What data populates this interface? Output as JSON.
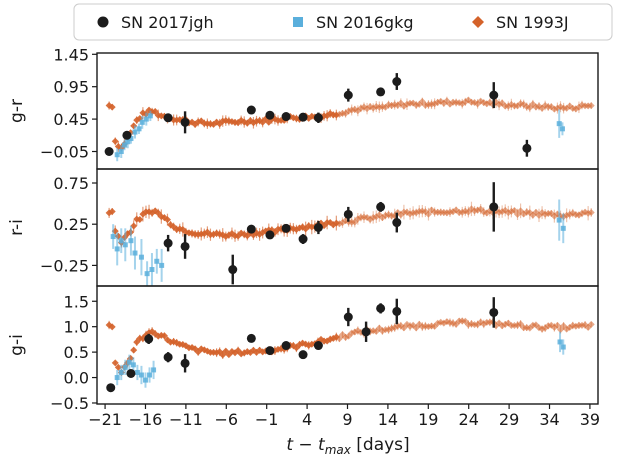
{
  "chart_data": {
    "type": "scatter",
    "xlabel_main": "t − t",
    "xlabel_sub": "max",
    "xlabel_unit": " [days]",
    "xlim": [
      -22,
      40
    ],
    "xticks": [
      -21,
      -16,
      -11,
      -6,
      -1,
      4,
      9,
      14,
      19,
      24,
      29,
      34,
      39
    ],
    "legend": {
      "placement": "top",
      "entries": [
        {
          "name": "SN 2017jgh",
          "color": "#1c1c1c",
          "marker": "circle"
        },
        {
          "name": "SN 2016gkg",
          "color": "#5aafdc",
          "marker": "square"
        },
        {
          "name": "SN 1993J",
          "color": "#d4622a",
          "marker": "diamond"
        }
      ]
    },
    "panels": [
      {
        "ylabel": "g-r",
        "ylim": [
          -0.32,
          1.47
        ],
        "yticks": [
          1.45,
          0.95,
          0.45,
          -0.05
        ],
        "ytick_labels": [
          "1.45",
          "0.95",
          "0.45",
          "−0.05"
        ],
        "sn1993j_curve": [
          [
            -20,
            0.15
          ],
          [
            -19,
            0.0
          ],
          [
            -18,
            0.2
          ],
          [
            -17,
            0.45
          ],
          [
            -16,
            0.55
          ],
          [
            -15,
            0.57
          ],
          [
            -14,
            0.5
          ],
          [
            -12,
            0.45
          ],
          [
            -10,
            0.4
          ],
          [
            -8,
            0.38
          ],
          [
            -6,
            0.4
          ],
          [
            -4,
            0.42
          ],
          [
            -2,
            0.42
          ],
          [
            0,
            0.44
          ],
          [
            2,
            0.47
          ],
          [
            4,
            0.48
          ],
          [
            6,
            0.5
          ],
          [
            8,
            0.55
          ],
          [
            10,
            0.6
          ],
          [
            12,
            0.62
          ],
          [
            14,
            0.64
          ],
          [
            16,
            0.68
          ],
          [
            20,
            0.7
          ],
          [
            24,
            0.72
          ],
          [
            28,
            0.68
          ],
          [
            32,
            0.65
          ],
          [
            36,
            0.62
          ],
          [
            39,
            0.66
          ]
        ],
        "sn2016gkg": [
          {
            "x": -19.5,
            "y": -0.1,
            "err": 0.1
          },
          {
            "x": -19.0,
            "y": -0.05,
            "err": 0.1
          },
          {
            "x": -18.6,
            "y": 0.05,
            "err": 0.08
          },
          {
            "x": -18.2,
            "y": 0.1,
            "err": 0.1
          },
          {
            "x": -17.8,
            "y": 0.15,
            "err": 0.08
          },
          {
            "x": -17.3,
            "y": 0.25,
            "err": 0.1
          },
          {
            "x": -16.8,
            "y": 0.3,
            "err": 0.08
          },
          {
            "x": -16.4,
            "y": 0.4,
            "err": 0.1
          },
          {
            "x": -15.9,
            "y": 0.45,
            "err": 0.1
          },
          {
            "x": -15.4,
            "y": 0.5,
            "err": 0.08
          },
          {
            "x": 35.2,
            "y": 0.38,
            "err": 0.22
          },
          {
            "x": 35.6,
            "y": 0.3,
            "err": 0.1
          }
        ],
        "sn2017jgh": [
          {
            "x": -20.5,
            "y": -0.05,
            "err": 0.04
          },
          {
            "x": -18.3,
            "y": 0.2,
            "err": 0.05
          },
          {
            "x": -13.2,
            "y": 0.47,
            "err": 0.05
          },
          {
            "x": -11.1,
            "y": 0.4,
            "err": 0.17
          },
          {
            "x": -2.9,
            "y": 0.59,
            "err": 0.06
          },
          {
            "x": -0.6,
            "y": 0.51,
            "err": 0.05
          },
          {
            "x": 1.4,
            "y": 0.49,
            "err": 0.05
          },
          {
            "x": 3.5,
            "y": 0.48,
            "err": 0.05
          },
          {
            "x": 5.4,
            "y": 0.47,
            "err": 0.08
          },
          {
            "x": 9.1,
            "y": 0.82,
            "err": 0.1
          },
          {
            "x": 13.1,
            "y": 0.87,
            "err": 0.06
          },
          {
            "x": 15.1,
            "y": 1.03,
            "err": 0.13
          },
          {
            "x": 27.1,
            "y": 0.82,
            "err": 0.2
          },
          {
            "x": 31.2,
            "y": 0.0,
            "err": 0.13
          }
        ]
      },
      {
        "ylabel": "r-i",
        "ylim": [
          -0.5,
          0.92
        ],
        "yticks": [
          0.75,
          0.25,
          -0.25
        ],
        "ytick_labels": [
          "0.75",
          "0.25",
          "−0.25"
        ],
        "sn1993j_curve": [
          [
            -20,
            0.2
          ],
          [
            -19,
            0.05
          ],
          [
            -18,
            0.15
          ],
          [
            -17,
            0.3
          ],
          [
            -16,
            0.38
          ],
          [
            -15,
            0.42
          ],
          [
            -14,
            0.35
          ],
          [
            -12,
            0.2
          ],
          [
            -10,
            0.15
          ],
          [
            -8,
            0.13
          ],
          [
            -6,
            0.12
          ],
          [
            -4,
            0.13
          ],
          [
            -2,
            0.15
          ],
          [
            0,
            0.16
          ],
          [
            2,
            0.2
          ],
          [
            4,
            0.22
          ],
          [
            6,
            0.25
          ],
          [
            8,
            0.28
          ],
          [
            10,
            0.3
          ],
          [
            12,
            0.33
          ],
          [
            14,
            0.35
          ],
          [
            16,
            0.38
          ],
          [
            20,
            0.4
          ],
          [
            24,
            0.42
          ],
          [
            28,
            0.4
          ],
          [
            32,
            0.38
          ],
          [
            36,
            0.36
          ],
          [
            39,
            0.4
          ]
        ],
        "sn2016gkg": [
          {
            "x": -20.0,
            "y": 0.1,
            "err": 0.15
          },
          {
            "x": -19.5,
            "y": -0.05,
            "err": 0.2
          },
          {
            "x": -19.0,
            "y": 0.05,
            "err": 0.15
          },
          {
            "x": -18.5,
            "y": 0.0,
            "err": 0.2
          },
          {
            "x": -17.8,
            "y": 0.05,
            "err": 0.18
          },
          {
            "x": -17.3,
            "y": -0.1,
            "err": 0.2
          },
          {
            "x": -16.5,
            "y": -0.15,
            "err": 0.22
          },
          {
            "x": -15.8,
            "y": -0.35,
            "err": 0.15
          },
          {
            "x": -15.2,
            "y": -0.3,
            "err": 0.2
          },
          {
            "x": -14.6,
            "y": -0.2,
            "err": 0.15
          },
          {
            "x": -14.0,
            "y": -0.25,
            "err": 0.2
          },
          {
            "x": 35.2,
            "y": 0.3,
            "err": 0.25
          },
          {
            "x": 35.7,
            "y": 0.2,
            "err": 0.18
          }
        ],
        "sn2017jgh": [
          {
            "x": -13.2,
            "y": 0.02,
            "err": 0.1
          },
          {
            "x": -11.1,
            "y": -0.02,
            "err": 0.15
          },
          {
            "x": -5.2,
            "y": -0.3,
            "err": 0.18
          },
          {
            "x": -2.9,
            "y": 0.19,
            "err": 0.05
          },
          {
            "x": -0.6,
            "y": 0.12,
            "err": 0.05
          },
          {
            "x": 1.4,
            "y": 0.2,
            "err": 0.05
          },
          {
            "x": 3.5,
            "y": 0.07,
            "err": 0.06
          },
          {
            "x": 5.4,
            "y": 0.21,
            "err": 0.08
          },
          {
            "x": 9.1,
            "y": 0.37,
            "err": 0.09
          },
          {
            "x": 13.1,
            "y": 0.46,
            "err": 0.06
          },
          {
            "x": 15.1,
            "y": 0.27,
            "err": 0.12
          },
          {
            "x": 27.1,
            "y": 0.46,
            "err": 0.3
          }
        ]
      },
      {
        "ylabel": "g-i",
        "ylim": [
          -0.52,
          1.8
        ],
        "yticks": [
          1.5,
          1.0,
          0.5,
          0.0,
          -0.5
        ],
        "ytick_labels": [
          "1.5",
          "1.0",
          "0.5",
          "0.0",
          "−0.5"
        ],
        "sn1993j_curve": [
          [
            -20,
            0.3
          ],
          [
            -19,
            0.1
          ],
          [
            -18,
            0.35
          ],
          [
            -17,
            0.7
          ],
          [
            -16,
            0.85
          ],
          [
            -15,
            0.9
          ],
          [
            -14,
            0.82
          ],
          [
            -12,
            0.65
          ],
          [
            -10,
            0.55
          ],
          [
            -8,
            0.5
          ],
          [
            -6,
            0.48
          ],
          [
            -4,
            0.5
          ],
          [
            -2,
            0.52
          ],
          [
            0,
            0.55
          ],
          [
            2,
            0.6
          ],
          [
            4,
            0.66
          ],
          [
            6,
            0.72
          ],
          [
            8,
            0.8
          ],
          [
            10,
            0.88
          ],
          [
            12,
            0.92
          ],
          [
            14,
            0.96
          ],
          [
            16,
            1.0
          ],
          [
            20,
            1.05
          ],
          [
            24,
            1.08
          ],
          [
            28,
            1.05
          ],
          [
            32,
            1.0
          ],
          [
            36,
            0.98
          ],
          [
            39,
            1.02
          ]
        ],
        "sn2016gkg": [
          {
            "x": -19.5,
            "y": 0.0,
            "err": 0.15
          },
          {
            "x": -19.0,
            "y": 0.1,
            "err": 0.15
          },
          {
            "x": -18.5,
            "y": 0.2,
            "err": 0.15
          },
          {
            "x": -18.0,
            "y": 0.3,
            "err": 0.15
          },
          {
            "x": -17.5,
            "y": 0.25,
            "err": 0.15
          },
          {
            "x": -17.0,
            "y": 0.1,
            "err": 0.15
          },
          {
            "x": -16.5,
            "y": 0.05,
            "err": 0.18
          },
          {
            "x": -16.0,
            "y": -0.05,
            "err": 0.15
          },
          {
            "x": -15.5,
            "y": 0.05,
            "err": 0.15
          },
          {
            "x": -15.0,
            "y": 0.15,
            "err": 0.18
          },
          {
            "x": 35.3,
            "y": 0.7,
            "err": 0.2
          },
          {
            "x": 35.7,
            "y": 0.6,
            "err": 0.15
          }
        ],
        "sn2017jgh": [
          {
            "x": -20.3,
            "y": -0.2,
            "err": 0.05
          },
          {
            "x": -17.8,
            "y": 0.08,
            "err": 0.06
          },
          {
            "x": -15.6,
            "y": 0.76,
            "err": 0.1
          },
          {
            "x": -13.2,
            "y": 0.4,
            "err": 0.1
          },
          {
            "x": -11.1,
            "y": 0.28,
            "err": 0.18
          },
          {
            "x": -2.9,
            "y": 0.77,
            "err": 0.06
          },
          {
            "x": -0.6,
            "y": 0.53,
            "err": 0.06
          },
          {
            "x": 1.4,
            "y": 0.63,
            "err": 0.06
          },
          {
            "x": 3.5,
            "y": 0.45,
            "err": 0.06
          },
          {
            "x": 5.4,
            "y": 0.63,
            "err": 0.08
          },
          {
            "x": 9.1,
            "y": 1.19,
            "err": 0.18
          },
          {
            "x": 11.3,
            "y": 0.9,
            "err": 0.2
          },
          {
            "x": 13.1,
            "y": 1.36,
            "err": 0.1
          },
          {
            "x": 15.1,
            "y": 1.3,
            "err": 0.25
          },
          {
            "x": 27.1,
            "y": 1.28,
            "err": 0.3
          }
        ]
      }
    ]
  }
}
